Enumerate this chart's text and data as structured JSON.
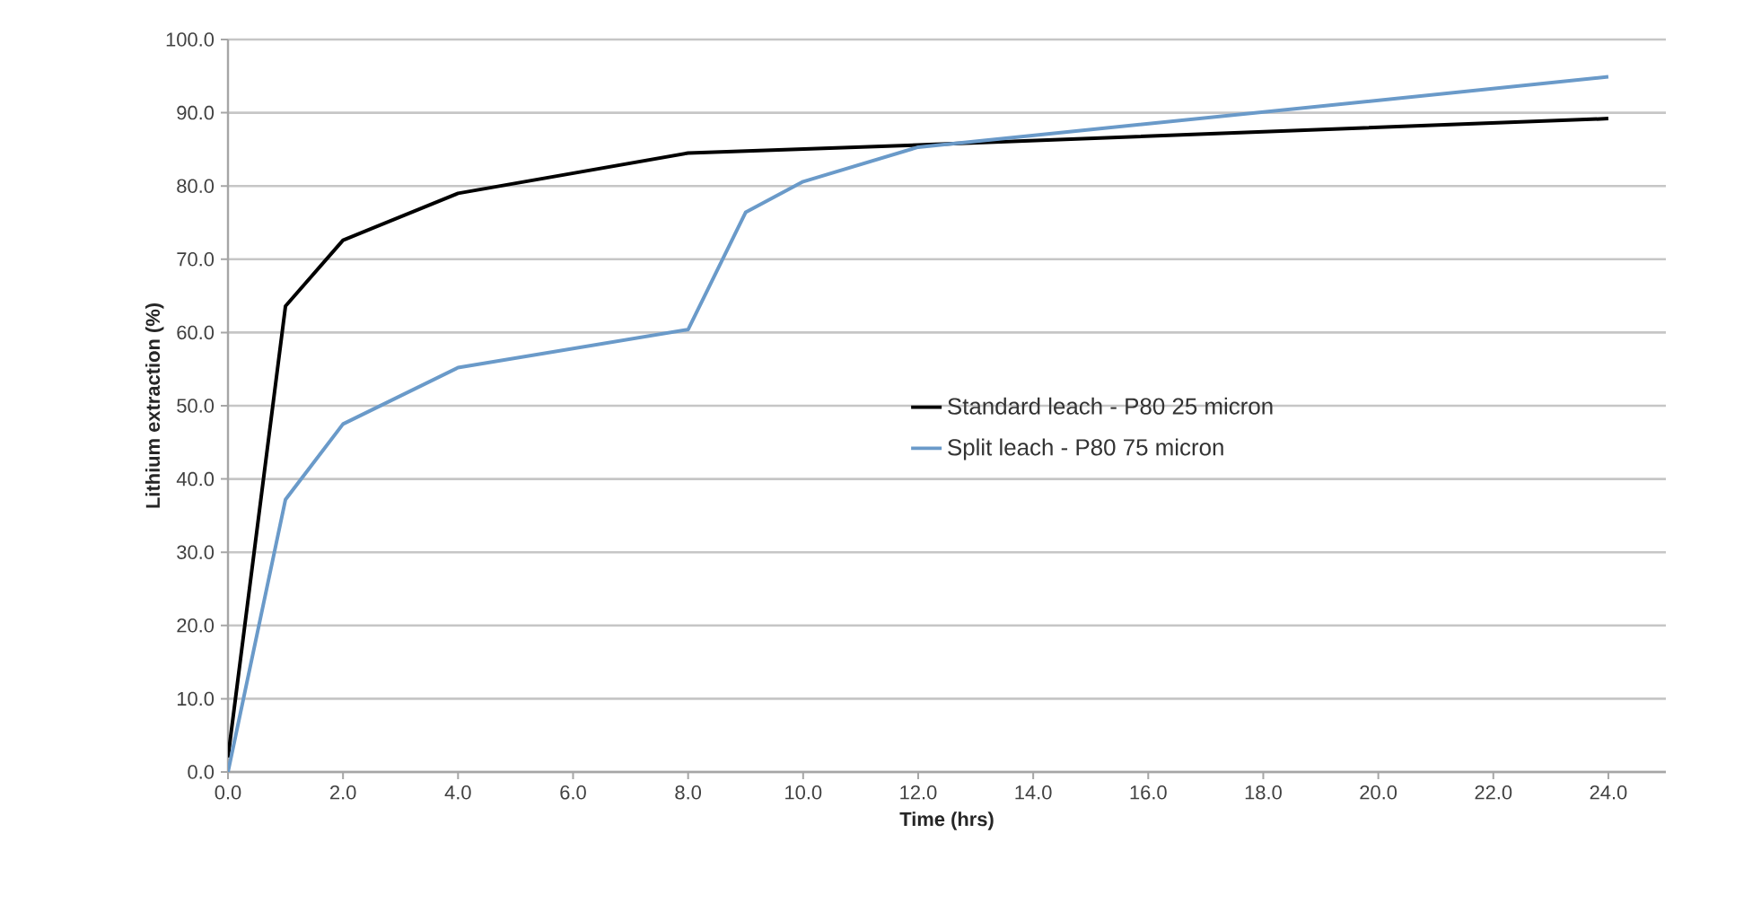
{
  "chart_data": {
    "type": "line",
    "xlabel": "Time (hrs)",
    "ylabel": "Lithium extraction (%)",
    "xlim": [
      0,
      25
    ],
    "ylim": [
      0,
      100
    ],
    "xticks": [
      {
        "value": 0,
        "label": "0.0"
      },
      {
        "value": 2,
        "label": "2.0"
      },
      {
        "value": 4,
        "label": "4.0"
      },
      {
        "value": 6,
        "label": "6.0"
      },
      {
        "value": 8,
        "label": "8.0"
      },
      {
        "value": 10,
        "label": "10.0"
      },
      {
        "value": 12,
        "label": "12.0"
      },
      {
        "value": 14,
        "label": "14.0"
      },
      {
        "value": 16,
        "label": "16.0"
      },
      {
        "value": 18,
        "label": "18.0"
      },
      {
        "value": 20,
        "label": "20.0"
      },
      {
        "value": 22,
        "label": "22.0"
      },
      {
        "value": 24,
        "label": "24.0"
      }
    ],
    "yticks": [
      {
        "value": 0,
        "label": "0.0"
      },
      {
        "value": 10,
        "label": "10.0"
      },
      {
        "value": 20,
        "label": "20.0"
      },
      {
        "value": 30,
        "label": "30.0"
      },
      {
        "value": 40,
        "label": "40.0"
      },
      {
        "value": 50,
        "label": "50.0"
      },
      {
        "value": 60,
        "label": "60.0"
      },
      {
        "value": 70,
        "label": "70.0"
      },
      {
        "value": 80,
        "label": "80.0"
      },
      {
        "value": 90,
        "label": "90.0"
      },
      {
        "value": 100,
        "label": "100.0"
      }
    ],
    "grid": "y",
    "legend": "center",
    "series": [
      {
        "name": "Standard leach - P80 25 micron",
        "color": "#000000",
        "x": [
          0,
          1,
          2,
          4,
          8,
          12,
          24
        ],
        "values": [
          2,
          63.6,
          72.6,
          79,
          84.5,
          85.6,
          89.2
        ]
      },
      {
        "name": "Split leach -  P80 75 micron",
        "color": "#6a9ac9",
        "x": [
          0,
          1,
          2,
          4,
          8,
          9,
          10,
          12,
          24
        ],
        "values": [
          0,
          37.2,
          47.5,
          55.2,
          60.4,
          76.4,
          80.6,
          85.3,
          94.9
        ]
      }
    ]
  }
}
